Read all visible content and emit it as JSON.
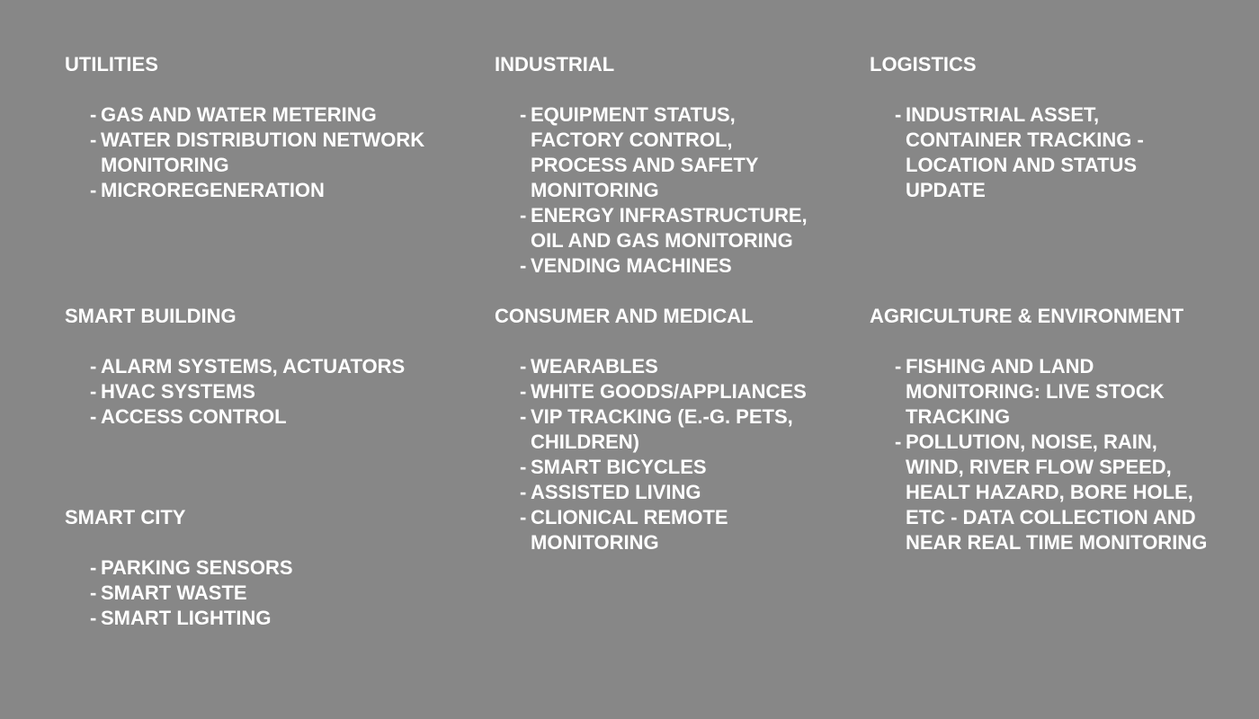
{
  "sections": {
    "utilities": {
      "title": "UTILITIES",
      "items": [
        "GAS AND WATER METERING",
        "WATER DISTRIBUTION NETWORK\nMONITORING",
        "MICROREGENERATION"
      ]
    },
    "industrial": {
      "title": "INDUSTRIAL",
      "items": [
        "EQUIPMENT STATUS,\nFACTORY CONTROL,\nPROCESS AND SAFETY\nMONITORING",
        "ENERGY INFRASTRUCTURE,\nOIL AND GAS MONITORING",
        "VENDING MACHINES"
      ]
    },
    "logistics": {
      "title": "LOGISTICS",
      "items": [
        "INDUSTRIAL ASSET,\nCONTAINER TRACKING -\nLOCATION AND STATUS\nUPDATE"
      ]
    },
    "smart_building": {
      "title": "SMART BUILDING",
      "items": [
        "ALARM SYSTEMS, ACTUATORS",
        "HVAC SYSTEMS",
        "ACCESS CONTROL"
      ]
    },
    "consumer_medical": {
      "title": "CONSUMER AND MEDICAL",
      "items": [
        "WEARABLES",
        "WHITE GOODS/APPLIANCES",
        "VIP TRACKING (E.-G. PETS,\nCHILDREN)",
        "SMART BICYCLES",
        "ASSISTED LIVING",
        "CLIONICAL REMOTE\nMONITORING"
      ]
    },
    "agriculture_environment": {
      "title": "AGRICULTURE & ENVIRONMENT",
      "items": [
        "FISHING AND LAND\nMONITORING: LIVE STOCK\nTRACKING",
        "POLLUTION, NOISE, RAIN,\nWIND, RIVER FLOW SPEED,\nHEALT HAZARD, BORE HOLE,\nETC  - DATA COLLECTION AND\nNEAR REAL TIME MONITORING"
      ]
    },
    "smart_city": {
      "title": "SMART CITY",
      "items": [
        "PARKING SENSORS",
        "SMART WASTE",
        "SMART LIGHTING"
      ]
    }
  },
  "bullet": "-"
}
